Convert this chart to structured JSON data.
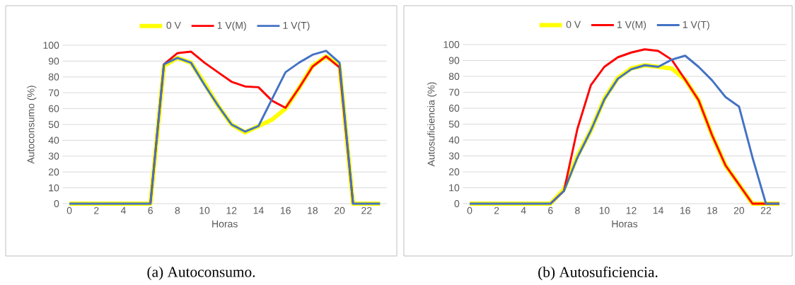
{
  "chart_data": [
    {
      "type": "line",
      "xlabel": "Horas",
      "ylabel": "Autoconsumo (%)",
      "x": [
        0,
        1,
        2,
        3,
        4,
        5,
        6,
        7,
        8,
        9,
        10,
        11,
        12,
        13,
        14,
        15,
        16,
        17,
        18,
        19,
        20,
        21,
        22,
        23
      ],
      "xlim": [
        -0.5,
        23.5
      ],
      "xticks": [
        0,
        2,
        4,
        6,
        8,
        10,
        12,
        14,
        16,
        18,
        20,
        22
      ],
      "ylim": [
        0,
        100
      ],
      "yticks": [
        0,
        10,
        20,
        30,
        40,
        50,
        60,
        70,
        80,
        90,
        100
      ],
      "grid": "y",
      "legend": "top",
      "annotations": [
        "(a) Autoconsumo."
      ],
      "series": [
        {
          "name": "0 V",
          "color": "#ffff00",
          "values": [
            0,
            0,
            0,
            0,
            0,
            0,
            0,
            87,
            92,
            89,
            76,
            62,
            50,
            45,
            49,
            53,
            60,
            73,
            87,
            93,
            87,
            0,
            0,
            0
          ]
        },
        {
          "name": "1 V(M)",
          "color": "#ff0000",
          "values": [
            null,
            null,
            null,
            null,
            null,
            null,
            0,
            88,
            95,
            96,
            89,
            83,
            77,
            74,
            73.5,
            65,
            60.5,
            73,
            86.5,
            93,
            86,
            0,
            null,
            null
          ]
        },
        {
          "name": "1 V(T)",
          "color": "#4472c4",
          "values": [
            0,
            0,
            0,
            0,
            0,
            0,
            0,
            88,
            92,
            89,
            75,
            62,
            50,
            45.5,
            49,
            66,
            83,
            89,
            94,
            96.5,
            89,
            0,
            0,
            0
          ]
        }
      ]
    },
    {
      "type": "line",
      "xlabel": "Horas",
      "ylabel": "Autosuficiencia (%)",
      "x": [
        0,
        1,
        2,
        3,
        4,
        5,
        6,
        7,
        8,
        9,
        10,
        11,
        12,
        13,
        14,
        15,
        16,
        17,
        18,
        19,
        20,
        21,
        22,
        23
      ],
      "xlim": [
        -0.5,
        23.5
      ],
      "xticks": [
        0,
        2,
        4,
        6,
        8,
        10,
        12,
        14,
        16,
        18,
        20,
        22
      ],
      "ylim": [
        0,
        100
      ],
      "yticks": [
        0,
        10,
        20,
        30,
        40,
        50,
        60,
        70,
        80,
        90,
        100
      ],
      "grid": "y",
      "legend": "top",
      "annotations": [
        "(b) Autosuficiencia."
      ],
      "series": [
        {
          "name": "0 V",
          "color": "#ffff00",
          "values": [
            0,
            0,
            0,
            0,
            0,
            0,
            0,
            9,
            30,
            46,
            66,
            79,
            85,
            87,
            86,
            85,
            78,
            65,
            43,
            24,
            12,
            0,
            0,
            0
          ]
        },
        {
          "name": "1 V(M)",
          "color": "#ff0000",
          "values": [
            null,
            null,
            null,
            null,
            null,
            null,
            0,
            8,
            47,
            74.5,
            86,
            92,
            95,
            97,
            96,
            90.5,
            78,
            65,
            43,
            24,
            12,
            0,
            0,
            0
          ]
        },
        {
          "name": "1 V(T)",
          "color": "#4472c4",
          "values": [
            0,
            0,
            0,
            0,
            0,
            0,
            0,
            8,
            29,
            46,
            65.5,
            78.5,
            84.5,
            87,
            86,
            90.5,
            93,
            86,
            77.5,
            67,
            61,
            29,
            0,
            0
          ]
        }
      ]
    }
  ]
}
